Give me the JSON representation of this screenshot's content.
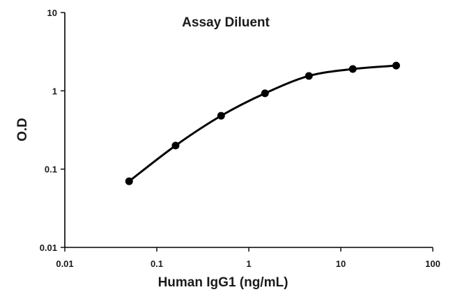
{
  "chart_data": {
    "type": "line",
    "title": "Assay Diluent",
    "xlabel": "Human IgG1 (ng/mL)",
    "ylabel": "O.D",
    "x_scale": "log",
    "y_scale": "log",
    "xlim": [
      0.01,
      100
    ],
    "ylim": [
      0.01,
      10
    ],
    "x_ticks": [
      "0.01",
      "0.1",
      "1",
      "10",
      "100"
    ],
    "y_ticks": [
      "0.01",
      "0.1",
      "1",
      "10"
    ],
    "grid": false,
    "legend": "none",
    "series": [
      {
        "x": [
          0.05,
          0.16,
          0.5,
          1.5,
          4.5,
          13.5,
          40
        ],
        "y": [
          0.07,
          0.2,
          0.48,
          0.93,
          1.55,
          1.9,
          2.1
        ]
      }
    ],
    "colors": {
      "line": "#000000",
      "markers": "#000000",
      "axes": "#000000"
    }
  }
}
